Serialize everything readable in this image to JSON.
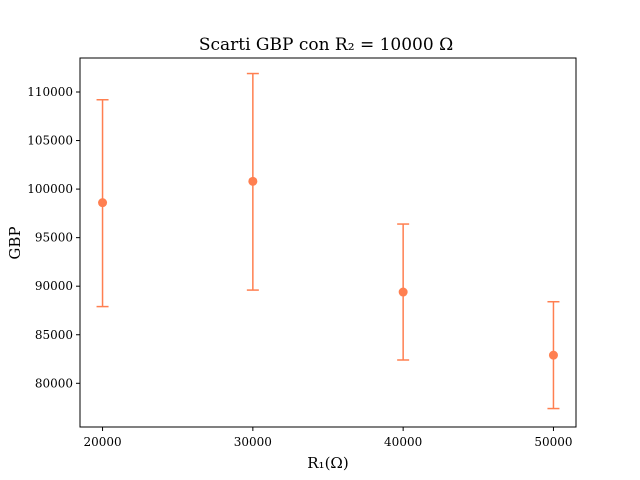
{
  "chart_data": {
    "type": "scatter",
    "title": "Scarti GBP con R₂ = 10000 Ω",
    "xlabel": "R₁(Ω)",
    "ylabel": "GBP",
    "color": "#ff7f50",
    "xlim": [
      18500,
      51500
    ],
    "ylim": [
      75500,
      113500
    ],
    "xticks": [
      20000,
      30000,
      40000,
      50000
    ],
    "yticks": [
      80000,
      85000,
      90000,
      95000,
      100000,
      105000,
      110000
    ],
    "grid": false,
    "points": [
      {
        "x": 20000,
        "y": 98600,
        "err_low": 87900,
        "err_high": 109200
      },
      {
        "x": 30000,
        "y": 100800,
        "err_low": 89600,
        "err_high": 111900
      },
      {
        "x": 40000,
        "y": 89400,
        "err_low": 82400,
        "err_high": 96400
      },
      {
        "x": 50000,
        "y": 82900,
        "err_low": 77400,
        "err_high": 88400
      }
    ]
  }
}
